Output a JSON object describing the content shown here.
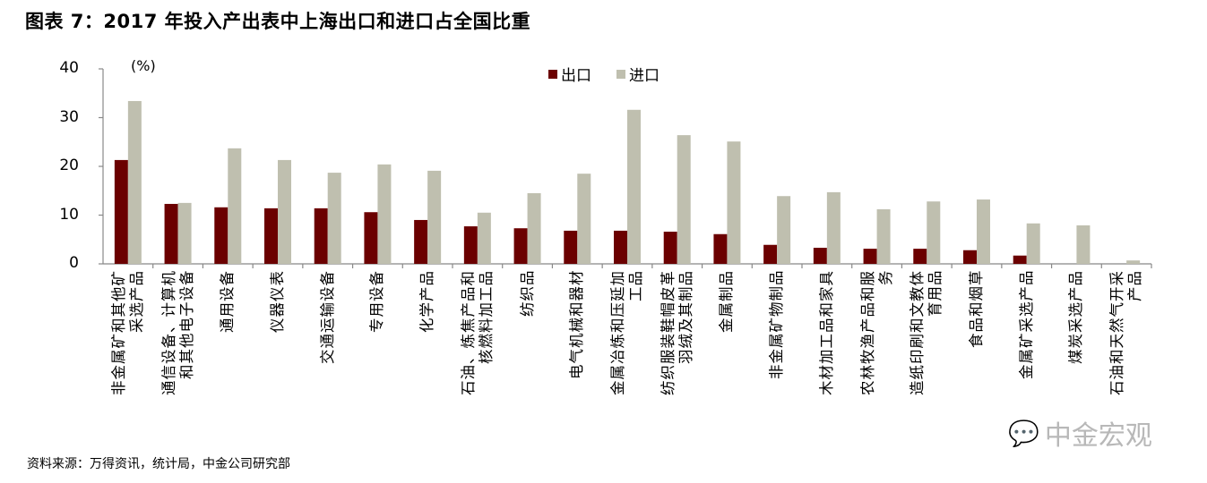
{
  "title": "图表 7：2017 年投入产出表中上海出口和进口占全国比重",
  "source": "资料来源：万得资讯，统计局，中金公司研究部",
  "watermark": "中金宏观",
  "chart_data": {
    "type": "bar",
    "title": "图表 7：2017 年投入产出表中上海出口和进口占全国比重",
    "ylabel": "(%)",
    "xlabel": "",
    "ylim": [
      0,
      40
    ],
    "yticks": [
      0,
      10,
      20,
      30,
      40
    ],
    "legend_position": "top-center",
    "grid": false,
    "categories": [
      "非金属矿和其他矿\n采选产品",
      "通信设备、计算机\n和其他电子设备",
      "通用设备",
      "仪器仪表",
      "交通运输设备",
      "专用设备",
      "化学产品",
      "石油、炼焦产品和\n核燃料加工品",
      "纺织品",
      "电气机械和器材",
      "金属冶炼和压延加\n工品",
      "纺织服装鞋帽皮革\n羽绒及其制品",
      "金属制品",
      "非金属矿物制品",
      "木材加工品和家具",
      "农林牧渔产品和服\n务",
      "造纸印刷和文教体\n育用品",
      "食品和烟草",
      "金属矿采选产品",
      "煤炭采选产品",
      "石油和天然气开采\n产品"
    ],
    "series": [
      {
        "name": "出口",
        "color": "#6b0000",
        "values": [
          21.3,
          12.3,
          11.6,
          11.4,
          11.4,
          10.6,
          9.0,
          7.7,
          7.3,
          6.8,
          6.8,
          6.6,
          6.1,
          3.9,
          3.3,
          3.1,
          3.1,
          2.8,
          1.7,
          0,
          0
        ]
      },
      {
        "name": "进口",
        "color": "#bfbfaf",
        "values": [
          33.4,
          12.5,
          23.7,
          21.3,
          18.7,
          20.4,
          19.1,
          10.5,
          14.5,
          18.5,
          31.6,
          26.4,
          25.1,
          13.9,
          14.7,
          11.2,
          12.8,
          13.2,
          8.3,
          7.9,
          0.7
        ]
      }
    ]
  }
}
